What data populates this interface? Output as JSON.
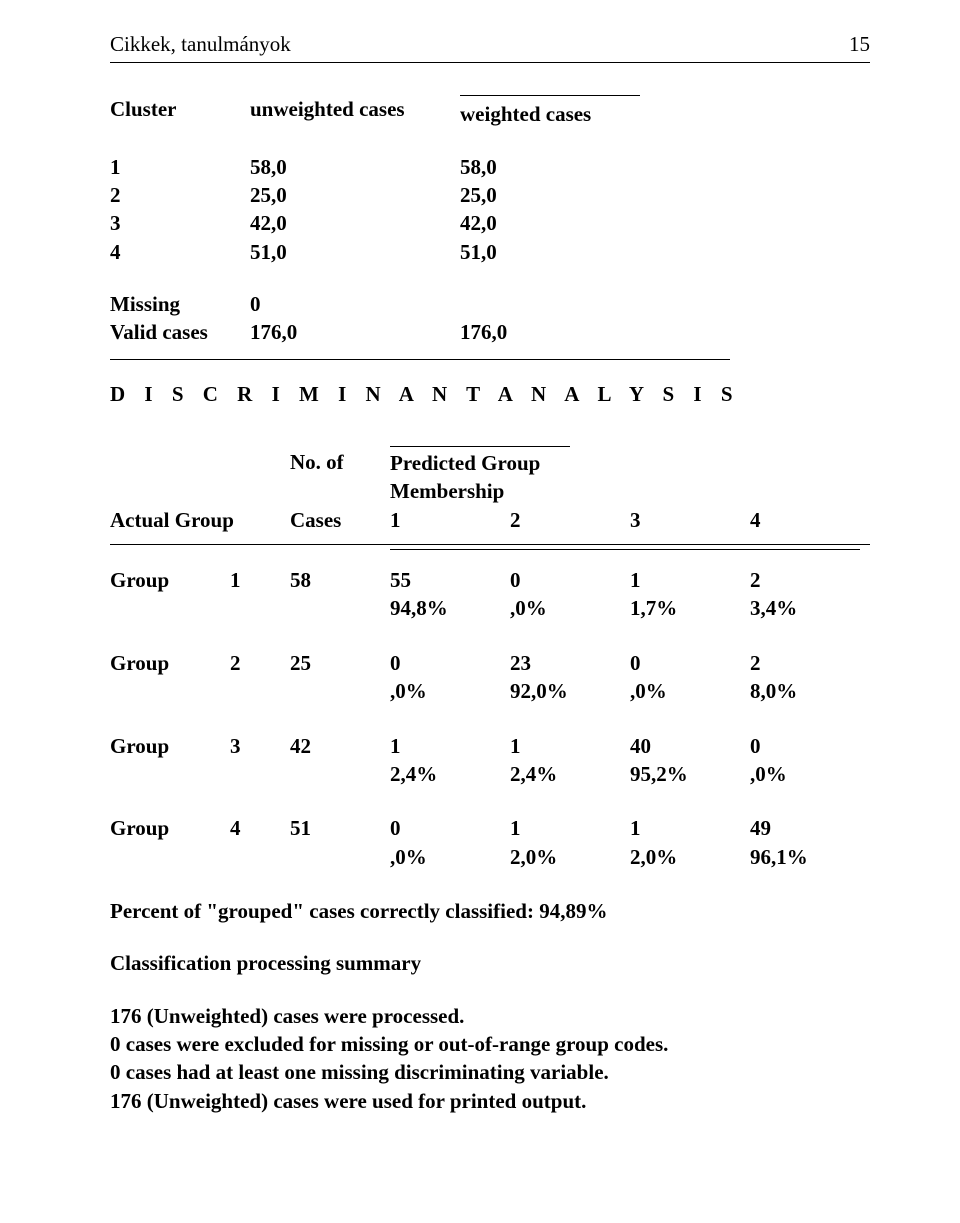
{
  "header": {
    "title": "Cikkek, tanulmányok",
    "page": "15"
  },
  "cluster_table": {
    "headers": {
      "cluster": "Cluster",
      "unweighted": "unweighted cases",
      "weighted": "weighted cases"
    },
    "rows": [
      {
        "id": "1",
        "unw": "58,0",
        "w": "58,0"
      },
      {
        "id": "2",
        "unw": "25,0",
        "w": "25,0"
      },
      {
        "id": "3",
        "unw": "42,0",
        "w": "42,0"
      },
      {
        "id": "4",
        "unw": "51,0",
        "w": "51,0"
      }
    ],
    "missing_label": "Missing",
    "missing_unw": "0",
    "valid_label": "Valid cases",
    "valid_unw": "176,0",
    "valid_w": "176,0"
  },
  "discriminant": "D I S C R I M I N A N T   A N A L Y S I S",
  "pred": {
    "no_of": "No.  of",
    "predicted": "Predicted Group Membership",
    "actual": "Actual Group",
    "cases": "Cases",
    "cols": [
      "1",
      "2",
      "3",
      "4"
    ]
  },
  "groups": [
    {
      "label": "Group",
      "idx": "1",
      "cases": "58",
      "vals": [
        "55",
        "0",
        "1",
        "2"
      ],
      "pcts": [
        "94,8%",
        ",0%",
        "1,7%",
        "3,4%"
      ]
    },
    {
      "label": "Group",
      "idx": "2",
      "cases": "25",
      "vals": [
        "0",
        "23",
        "0",
        "2"
      ],
      "pcts": [
        ",0%",
        "92,0%",
        ",0%",
        "8,0%"
      ]
    },
    {
      "label": "Group",
      "idx": "3",
      "cases": "42",
      "vals": [
        "1",
        "1",
        "40",
        "0"
      ],
      "pcts": [
        "2,4%",
        "2,4%",
        "95,2%",
        ",0%"
      ]
    },
    {
      "label": "Group",
      "idx": "4",
      "cases": "51",
      "vals": [
        "0",
        "1",
        "1",
        "49"
      ],
      "pcts": [
        ",0%",
        "2,0%",
        "2,0%",
        "96,1%"
      ]
    }
  ],
  "percent_line": "Percent of \"grouped\" cases correctly classified: 94,89%",
  "summary_title": "Classification processing summary",
  "summary_lines": [
    "176 (Unweighted) cases were processed.",
    "0 cases were excluded for missing or out-of-range group codes.",
    "0 cases had at least one missing discriminating variable.",
    "176 (Unweighted) cases were used for printed output."
  ]
}
